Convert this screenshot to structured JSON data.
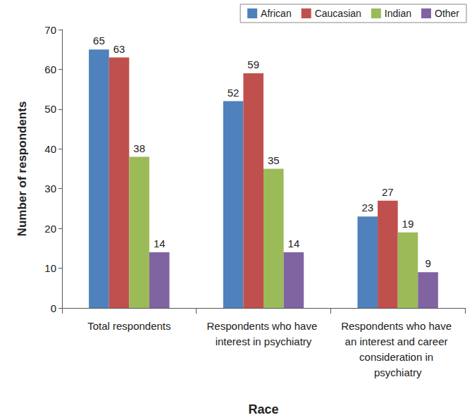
{
  "chart_data": {
    "type": "bar",
    "x_label": "Race",
    "y_label": "Number of respondents",
    "categories": [
      "Total respondents",
      "Respondents who have interest in psychiatry",
      "Respondents who have an interest and career consideration in psychiatry"
    ],
    "series": [
      {
        "name": "African",
        "color": "#4f81bd",
        "values": [
          65,
          52,
          23
        ]
      },
      {
        "name": "Caucasian",
        "color": "#c0504d",
        "values": [
          63,
          59,
          27
        ]
      },
      {
        "name": "Indian",
        "color": "#9bbb59",
        "values": [
          38,
          35,
          19
        ]
      },
      {
        "name": "Other",
        "color": "#8064a2",
        "values": [
          14,
          14,
          9
        ]
      }
    ],
    "ylim": [
      0,
      70
    ],
    "yticks": [
      0,
      10,
      20,
      30,
      40,
      50,
      60,
      70
    ],
    "grid": false,
    "legend": "top-right",
    "data_labels": true
  }
}
